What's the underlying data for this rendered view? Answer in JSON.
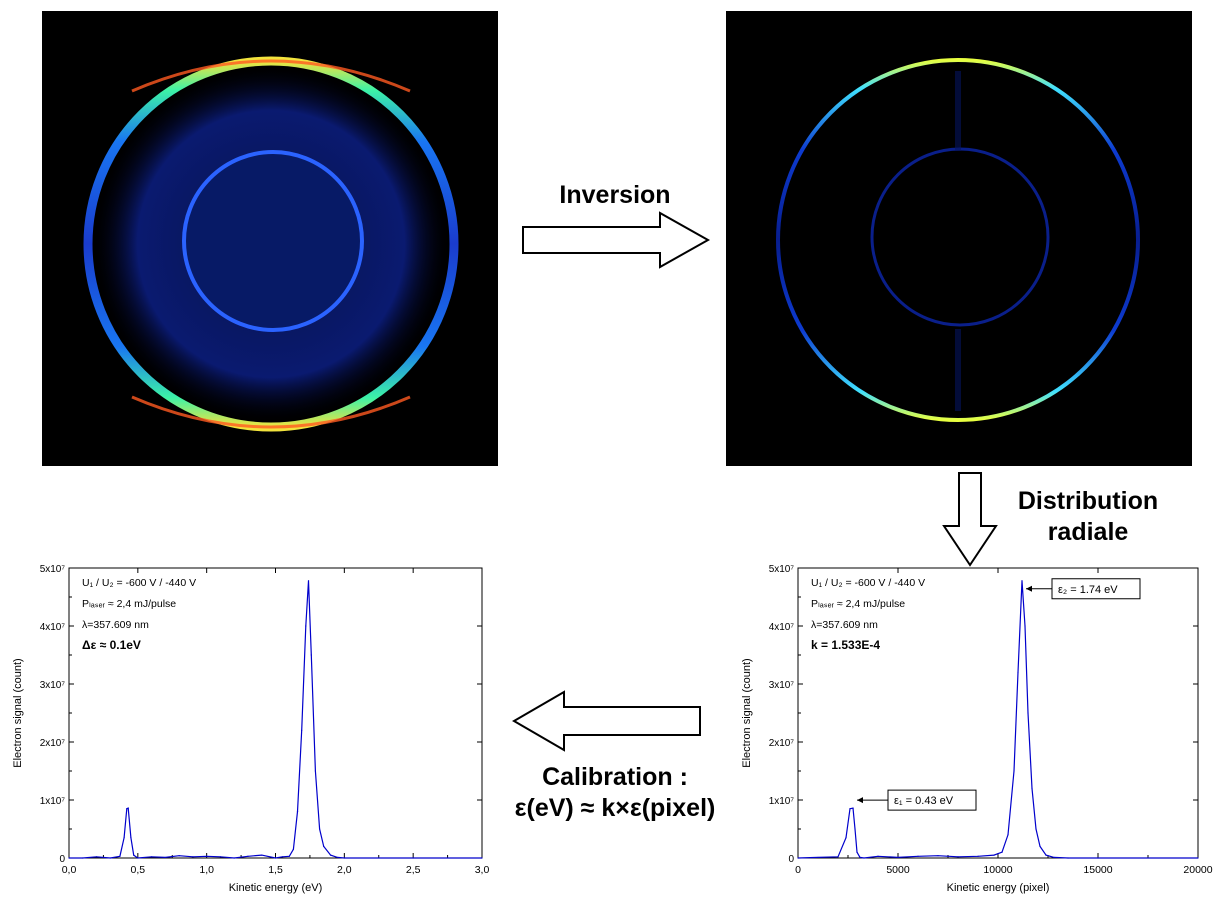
{
  "labels": {
    "inversion": "Inversion",
    "distribution_line1": "Distribution",
    "distribution_line2": "radiale",
    "calibration_line1": "Calibration :",
    "calibration_line2": "ε(eV) ≈ k×ε(pixel)"
  },
  "images": {
    "raw": {
      "description_name": "raw-vmi-image"
    },
    "inverted": {
      "description_name": "inverted-vmi-image"
    }
  },
  "colors": {
    "curve": "#0000cc",
    "image_background": "#000000"
  },
  "chart_data": [
    {
      "type": "line",
      "title": "",
      "xlabel": "Kinetic energy (eV)",
      "ylabel": "Electron signal (count)",
      "xlim": [
        0,
        3.0
      ],
      "ylim": [
        0,
        50000000
      ],
      "x_ticks": [
        "0,0",
        "0,5",
        "1,0",
        "1,5",
        "2,0",
        "2,5",
        "3,0"
      ],
      "x_tick_values": [
        0,
        0.5,
        1.0,
        1.5,
        2.0,
        2.5,
        3.0
      ],
      "y_ticks": [
        "0",
        "1x10⁷",
        "2x10⁷",
        "3x10⁷",
        "4x10⁷",
        "5x10⁷"
      ],
      "y_tick_values": [
        0,
        10000000,
        20000000,
        30000000,
        40000000,
        50000000
      ],
      "annotations": [
        "U₁ / U₂ = -600 V / -440 V",
        "Pₗₐₛₑᵣ ≈ 2,4 mJ/pulse",
        "λ=357.609 nm",
        "Δε ≈ 0.1eV"
      ],
      "series": [
        {
          "x": [
            0.0,
            0.1,
            0.2,
            0.3,
            0.37,
            0.4,
            0.42,
            0.43,
            0.45,
            0.47,
            0.5,
            0.6,
            0.7,
            0.8,
            0.9,
            1.0,
            1.1,
            1.2,
            1.3,
            1.4,
            1.5,
            1.55,
            1.6,
            1.63,
            1.66,
            1.69,
            1.72,
            1.74,
            1.76,
            1.79,
            1.82,
            1.85,
            1.9,
            1.95,
            2.0,
            2.5,
            3.0
          ],
          "y": [
            0,
            0,
            200000,
            0,
            300000,
            3500000,
            8500000,
            8600000,
            3500000,
            500000,
            0,
            200000,
            100000,
            400000,
            200000,
            300000,
            200000,
            0,
            300000,
            500000,
            0,
            200000,
            300000,
            1500000,
            8000000,
            22000000,
            40000000,
            47800000,
            35000000,
            15000000,
            5000000,
            2000000,
            500000,
            100000,
            0,
            0,
            0
          ]
        }
      ]
    },
    {
      "type": "line",
      "title": "",
      "xlabel": "Kinetic energy (pixel)",
      "ylabel": "Electron signal (count)",
      "xlim": [
        0,
        20000
      ],
      "ylim": [
        0,
        50000000
      ],
      "x_ticks": [
        "0",
        "5000",
        "10000",
        "15000",
        "20000"
      ],
      "x_tick_values": [
        0,
        5000,
        10000,
        15000,
        20000
      ],
      "y_ticks": [
        "0",
        "1x10⁷",
        "2x10⁷",
        "3x10⁷",
        "4x10⁷",
        "5x10⁷"
      ],
      "y_tick_values": [
        0,
        10000000,
        20000000,
        30000000,
        40000000,
        50000000
      ],
      "annotations": [
        "U₁ / U₂ = -600 V / -440 V",
        "Pₗₐₛₑᵣ ≈ 2,4 mJ/pulse",
        "λ=357.609 nm",
        "k = 1.533E-4"
      ],
      "peak_labels": [
        "ε₁ = 0.43 eV",
        "ε₂ = 1.74 eV"
      ],
      "series": [
        {
          "x": [
            0,
            1000,
            2000,
            2400,
            2600,
            2750,
            2850,
            2950,
            3100,
            3300,
            4000,
            5000,
            6000,
            7000,
            8000,
            9000,
            9800,
            10200,
            10500,
            10800,
            11000,
            11200,
            11350,
            11500,
            11700,
            11900,
            12100,
            12400,
            12800,
            13500,
            15000,
            20000
          ],
          "y": [
            0,
            100000,
            200000,
            3500000,
            8500000,
            8600000,
            5000000,
            1000000,
            100000,
            0,
            300000,
            100000,
            300000,
            400000,
            200000,
            300000,
            500000,
            1000000,
            4000000,
            15000000,
            32000000,
            47800000,
            40000000,
            25000000,
            12000000,
            5000000,
            2000000,
            500000,
            100000,
            0,
            0,
            0
          ]
        }
      ]
    }
  ]
}
